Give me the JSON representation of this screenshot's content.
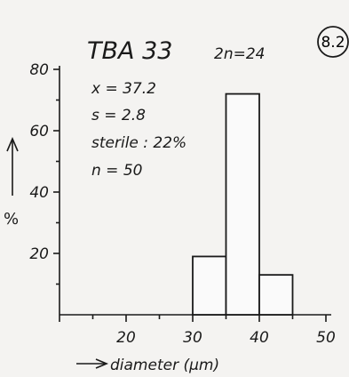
{
  "chart_data": {
    "type": "bar",
    "title": "TBA 33",
    "chromosome": "2n=24",
    "badge": "8.2",
    "stats": [
      "x = 37.2",
      "s = 2.8",
      "sterile : 22%",
      "n = 50"
    ],
    "xlabel": "diameter (µm)",
    "ylabel": "%",
    "xlim": [
      10,
      50
    ],
    "ylim": [
      0,
      80
    ],
    "xticks": [
      20,
      30,
      40,
      50
    ],
    "yticks": [
      20,
      40,
      60,
      80
    ],
    "bins": [
      {
        "x0": 30,
        "x1": 35,
        "value": 19
      },
      {
        "x0": 35,
        "x1": 40,
        "value": 72
      },
      {
        "x0": 40,
        "x1": 45,
        "value": 13
      }
    ],
    "grid": false
  },
  "colors": {
    "ink": "#1a1a1a",
    "paper": "#f4f3f1"
  }
}
